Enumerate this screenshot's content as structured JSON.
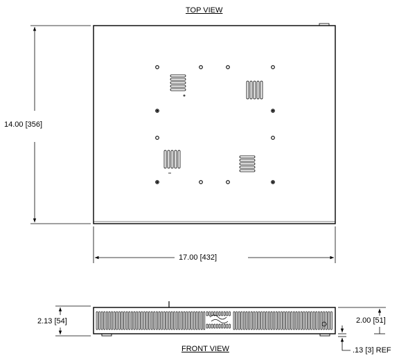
{
  "views": {
    "top_title": "TOP VIEW",
    "front_title": "FRONT VIEW"
  },
  "dimensions": {
    "height": "14.00  [356]",
    "width": "17.00  [432]",
    "front_left_height": "2.13  [54]",
    "front_right_height": "2.00  [51]",
    "foot_height": ".13  [3] REF"
  },
  "colors": {
    "line": "#000000",
    "background": "#ffffff"
  }
}
